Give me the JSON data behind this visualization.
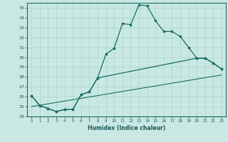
{
  "title": "",
  "xlabel": "Humidex (Indice chaleur)",
  "xlim": [
    -0.5,
    23.5
  ],
  "ylim": [
    24,
    35.5
  ],
  "yticks": [
    24,
    25,
    26,
    27,
    28,
    29,
    30,
    31,
    32,
    33,
    34,
    35
  ],
  "xticks": [
    0,
    1,
    2,
    3,
    4,
    5,
    6,
    7,
    8,
    9,
    10,
    11,
    12,
    13,
    14,
    15,
    16,
    17,
    18,
    19,
    20,
    21,
    22,
    23
  ],
  "bg_color": "#c9e8e4",
  "line_color": "#1a6b60",
  "line1_x": [
    0,
    1,
    2,
    3,
    4,
    5,
    6,
    7,
    8,
    9,
    10,
    11,
    12,
    13,
    14,
    15,
    16,
    17,
    18,
    19,
    20,
    21,
    22,
    23
  ],
  "line1_y": [
    26.1,
    25.1,
    24.8,
    24.5,
    24.7,
    24.7,
    26.2,
    26.5,
    27.9,
    30.3,
    30.9,
    33.4,
    33.3,
    35.3,
    35.2,
    33.7,
    32.6,
    32.6,
    32.1,
    31.0,
    29.9,
    29.9,
    29.4,
    28.8
  ],
  "line2_x": [
    0,
    1,
    2,
    3,
    4,
    5,
    6,
    7,
    8,
    20,
    21,
    22,
    23
  ],
  "line2_y": [
    26.1,
    25.1,
    24.8,
    24.5,
    24.7,
    24.7,
    26.2,
    26.5,
    27.9,
    29.9,
    29.9,
    29.4,
    28.8
  ],
  "line3_x": [
    0,
    23
  ],
  "line3_y": [
    25.0,
    28.2
  ]
}
